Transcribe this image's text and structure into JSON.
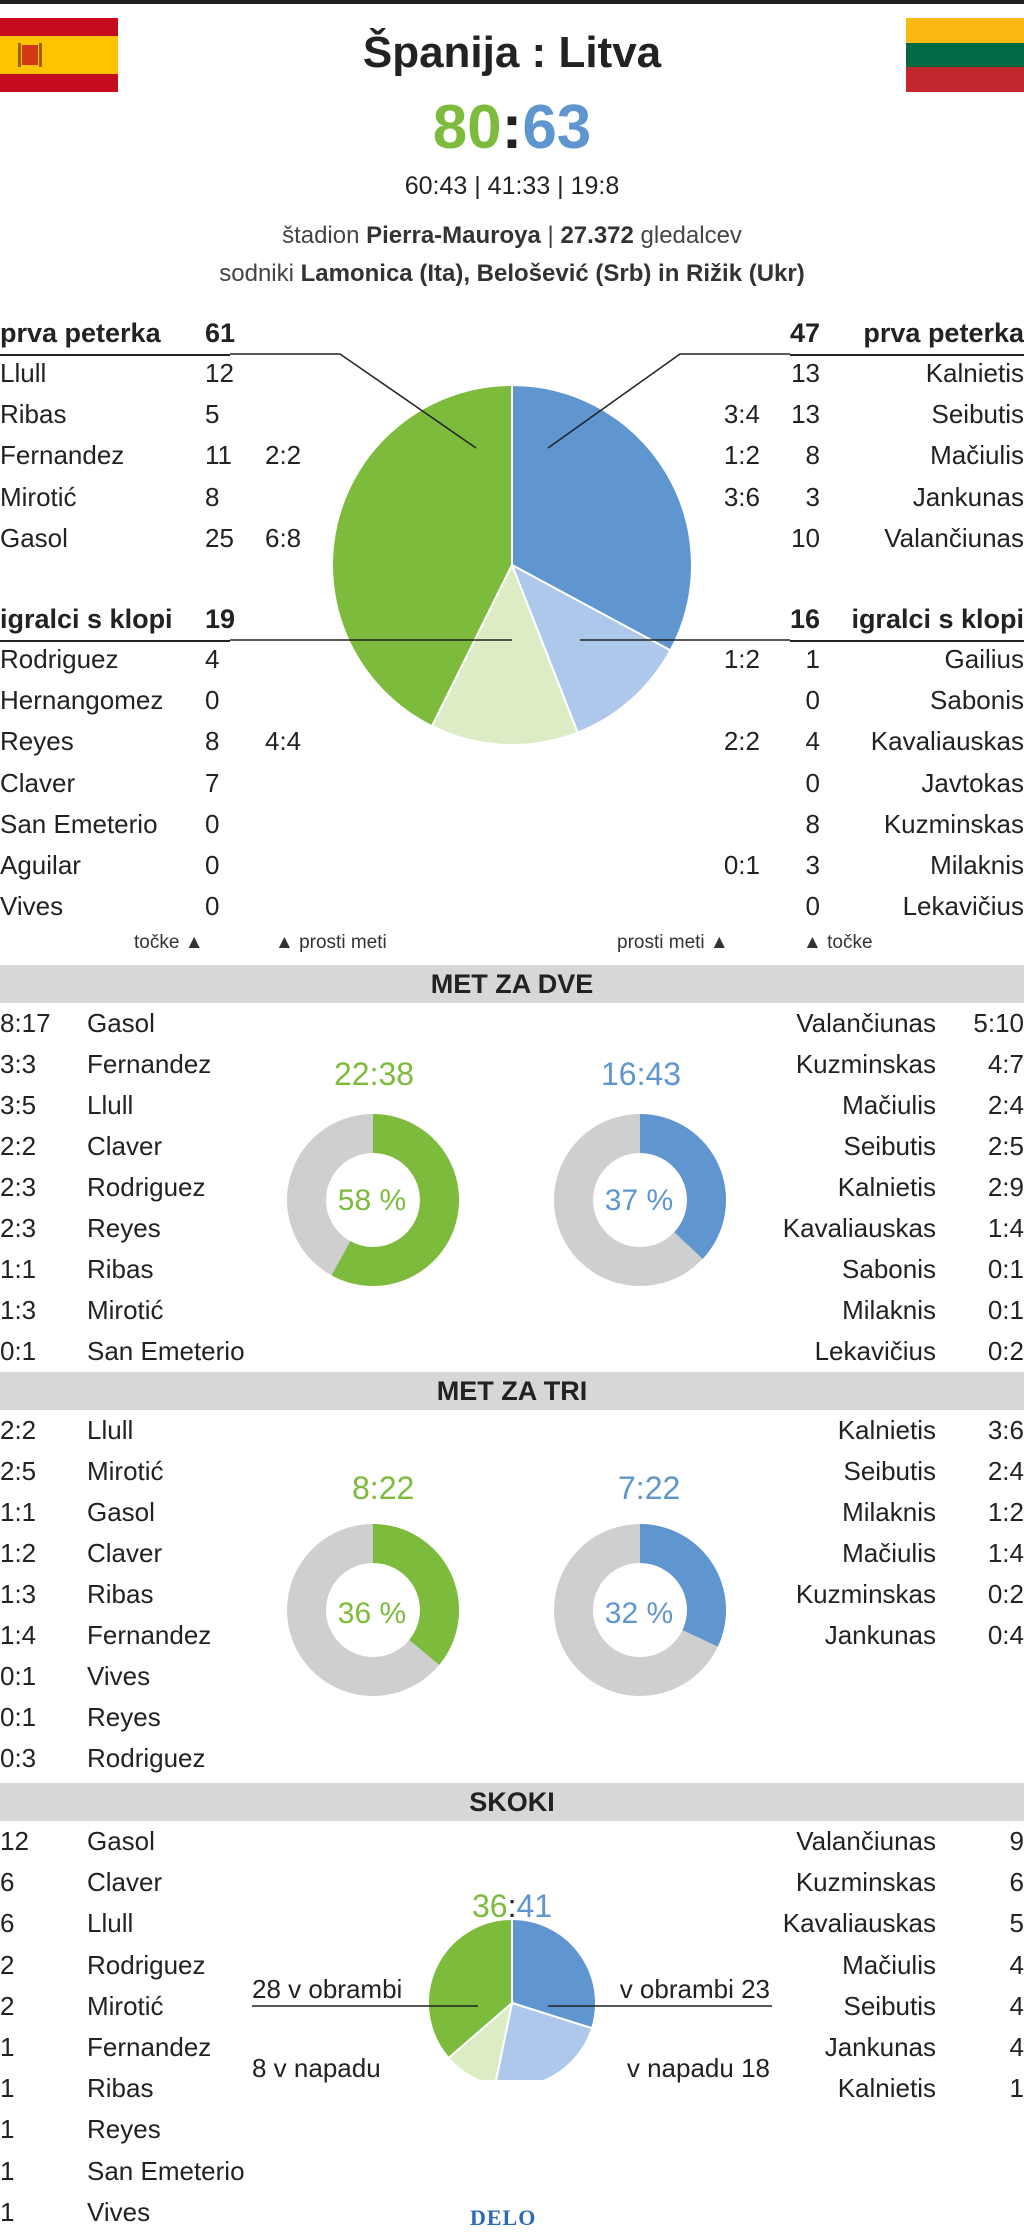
{
  "header": {
    "title": "Španija : Litva",
    "score_home": "80",
    "score_sep": ":",
    "score_away": "63",
    "quarters": "60:43 | 41:33 | 19:8",
    "venue_prefix": "štadion ",
    "venue_name": "Pierra-Mauroya",
    "venue_sep": " | ",
    "attendance": "27.372",
    "attendance_suffix": " gledalcev",
    "referees_prefix": "sodniki ",
    "referees": "Lamonica (Ita), Belošević (Srb) in Rižik (Ukr)"
  },
  "colors": {
    "home": "#7dbb3c",
    "home_light": "#dcecc4",
    "away": "#5f96cf",
    "away_light": "#adc8ea",
    "band": "#d7d7d7",
    "ring_gray": "#cfcfcf"
  },
  "flags": {
    "home": "flag-spain",
    "away": "flag-lithuania"
  },
  "starters": {
    "label": "prva peterka",
    "home_total": "61",
    "away_total": "47",
    "home": [
      {
        "name": "Llull",
        "pts": "12",
        "ft": ""
      },
      {
        "name": "Ribas",
        "pts": "5",
        "ft": ""
      },
      {
        "name": "Fernandez",
        "pts": "11",
        "ft": "2:2"
      },
      {
        "name": "Mirotić",
        "pts": "8",
        "ft": ""
      },
      {
        "name": "Gasol",
        "pts": "25",
        "ft": "6:8"
      }
    ],
    "away": [
      {
        "name": "Kalnietis",
        "pts": "13",
        "ft": ""
      },
      {
        "name": "Seibutis",
        "pts": "13",
        "ft": "3:4"
      },
      {
        "name": "Mačiulis",
        "pts": "8",
        "ft": "1:2"
      },
      {
        "name": "Jankunas",
        "pts": "3",
        "ft": "3:6"
      },
      {
        "name": "Valančiunas",
        "pts": "10",
        "ft": ""
      }
    ]
  },
  "bench": {
    "label": "igralci s klopi",
    "home_total": "19",
    "away_total": "16",
    "home": [
      {
        "name": "Rodriguez",
        "pts": "4",
        "ft": ""
      },
      {
        "name": "Hernangomez",
        "pts": "0",
        "ft": ""
      },
      {
        "name": "Reyes",
        "pts": "8",
        "ft": "4:4"
      },
      {
        "name": "Claver",
        "pts": "7",
        "ft": ""
      },
      {
        "name": "San Emeterio",
        "pts": "0",
        "ft": ""
      },
      {
        "name": "Aguilar",
        "pts": "0",
        "ft": ""
      },
      {
        "name": "Vives",
        "pts": "0",
        "ft": ""
      }
    ],
    "away": [
      {
        "name": "Gailius",
        "pts": "1",
        "ft": "1:2"
      },
      {
        "name": "Sabonis",
        "pts": "0",
        "ft": ""
      },
      {
        "name": "Kavaliauskas",
        "pts": "4",
        "ft": "2:2"
      },
      {
        "name": "Javtokas",
        "pts": "0",
        "ft": ""
      },
      {
        "name": "Kuzminskas",
        "pts": "8",
        "ft": ""
      },
      {
        "name": "Milaknis",
        "pts": "3",
        "ft": "0:1"
      },
      {
        "name": "Lekavičius",
        "pts": "0",
        "ft": ""
      }
    ]
  },
  "legend": {
    "points": "točke",
    "free_throws": "prosti meti",
    "arrow": "▲"
  },
  "two_pt": {
    "title": "MET ZA DVE",
    "home_ratio": "22:38",
    "home_pct": "58 %",
    "away_ratio": "16:43",
    "away_pct": "37 %",
    "home": [
      {
        "val": "8:17",
        "name": "Gasol"
      },
      {
        "val": "3:3",
        "name": "Fernandez"
      },
      {
        "val": "3:5",
        "name": "Llull"
      },
      {
        "val": "2:2",
        "name": "Claver"
      },
      {
        "val": "2:3",
        "name": "Rodriguez"
      },
      {
        "val": "2:3",
        "name": "Reyes"
      },
      {
        "val": "1:1",
        "name": "Ribas"
      },
      {
        "val": "1:3",
        "name": "Mirotić"
      },
      {
        "val": "0:1",
        "name": "San Emeterio"
      }
    ],
    "away": [
      {
        "val": "5:10",
        "name": "Valančiunas"
      },
      {
        "val": "4:7",
        "name": "Kuzminskas"
      },
      {
        "val": "2:4",
        "name": "Mačiulis"
      },
      {
        "val": "2:5",
        "name": "Seibutis"
      },
      {
        "val": "2:9",
        "name": "Kalnietis"
      },
      {
        "val": "1:4",
        "name": "Kavaliauskas"
      },
      {
        "val": "0:1",
        "name": "Sabonis"
      },
      {
        "val": "0:1",
        "name": "Milaknis"
      },
      {
        "val": "0:2",
        "name": "Lekavičius"
      }
    ]
  },
  "three_pt": {
    "title": "MET ZA TRI",
    "home_ratio": "8:22",
    "home_pct": "36 %",
    "away_ratio": "7:22",
    "away_pct": "32 %",
    "home": [
      {
        "val": "2:2",
        "name": "Llull"
      },
      {
        "val": "2:5",
        "name": "Mirotić"
      },
      {
        "val": "1:1",
        "name": "Gasol"
      },
      {
        "val": "1:2",
        "name": "Claver"
      },
      {
        "val": "1:3",
        "name": "Ribas"
      },
      {
        "val": "1:4",
        "name": "Fernandez"
      },
      {
        "val": "0:1",
        "name": "Vives"
      },
      {
        "val": "0:1",
        "name": "Reyes"
      },
      {
        "val": "0:3",
        "name": "Rodriguez"
      }
    ],
    "away": [
      {
        "val": "3:6",
        "name": "Kalnietis"
      },
      {
        "val": "2:4",
        "name": "Seibutis"
      },
      {
        "val": "1:2",
        "name": "Milaknis"
      },
      {
        "val": "1:4",
        "name": "Mačiulis"
      },
      {
        "val": "0:2",
        "name": "Kuzminskas"
      },
      {
        "val": "0:4",
        "name": "Jankunas"
      }
    ]
  },
  "rebounds": {
    "title": "SKOKI",
    "home_total": "36",
    "sep": ":",
    "away_total": "41",
    "home_def": "28 v obrambi",
    "home_off": "8 v napadu",
    "away_def": "v obrambi 23",
    "away_off": "v napadu 18",
    "home": [
      {
        "val": "12",
        "name": "Gasol"
      },
      {
        "val": "6",
        "name": "Claver"
      },
      {
        "val": "6",
        "name": "Llull"
      },
      {
        "val": "2",
        "name": "Rodriguez"
      },
      {
        "val": "2",
        "name": "Mirotić"
      },
      {
        "val": "1",
        "name": "Fernandez"
      },
      {
        "val": "1",
        "name": "Ribas"
      },
      {
        "val": "1",
        "name": "Reyes"
      },
      {
        "val": "1",
        "name": "San Emeterio"
      },
      {
        "val": "1",
        "name": "Vives"
      }
    ],
    "away": [
      {
        "val": "9",
        "name": "Valančiunas"
      },
      {
        "val": "6",
        "name": "Kuzminskas"
      },
      {
        "val": "5",
        "name": "Kavaliauskas"
      },
      {
        "val": "4",
        "name": "Mačiulis"
      },
      {
        "val": "4",
        "name": "Seibutis"
      },
      {
        "val": "4",
        "name": "Jankunas"
      },
      {
        "val": "1",
        "name": "Kalnietis"
      }
    ]
  },
  "footer": {
    "logo": "DELO"
  },
  "chart_data": [
    {
      "type": "pie",
      "title": "",
      "categories": [
        "Španija prva peterka",
        "Španija igralci s klopi",
        "Litva prva peterka",
        "Litva igralci s klopi"
      ],
      "values": [
        61,
        19,
        47,
        16
      ]
    },
    {
      "type": "pie",
      "title": "MET ZA DVE",
      "series": [
        {
          "name": "Španija",
          "made": 22,
          "attempted": 38,
          "percent": 58
        },
        {
          "name": "Litva",
          "made": 16,
          "attempted": 43,
          "percent": 37
        }
      ]
    },
    {
      "type": "pie",
      "title": "MET ZA TRI",
      "series": [
        {
          "name": "Španija",
          "made": 8,
          "attempted": 22,
          "percent": 36
        },
        {
          "name": "Litva",
          "made": 7,
          "attempted": 22,
          "percent": 32
        }
      ]
    },
    {
      "type": "pie",
      "title": "SKOKI",
      "categories": [
        "Španija v obrambi",
        "Španija v napadu",
        "Litva v obrambi",
        "Litva v napadu"
      ],
      "values": [
        28,
        8,
        23,
        18
      ]
    }
  ]
}
